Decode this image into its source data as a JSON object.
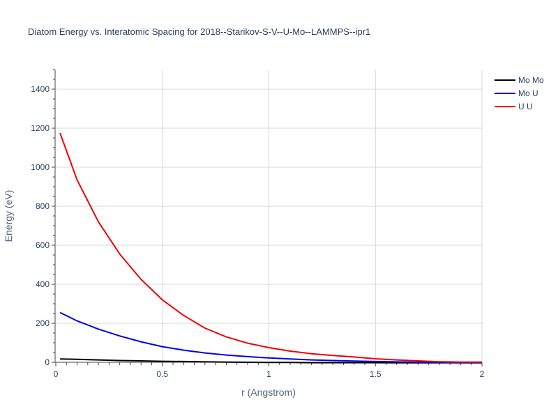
{
  "chart_data": {
    "type": "line",
    "title": "Diatom Energy vs. Interatomic Spacing for 2018--Starikov-S-V--U-Mo--LAMMPS--ipr1",
    "xlabel": "r (Angstrom)",
    "ylabel": "Energy (eV)",
    "xlim": [
      0,
      2
    ],
    "ylim": [
      0,
      1500
    ],
    "xticks": [
      0,
      0.5,
      1,
      1.5,
      2
    ],
    "xtick_labels": [
      "0",
      "0.5",
      "1",
      "1.5",
      "2"
    ],
    "yticks": [
      0,
      200,
      400,
      600,
      800,
      1000,
      1200,
      1400
    ],
    "ytick_labels": [
      "0",
      "200",
      "400",
      "600",
      "800",
      "1000",
      "1200",
      "1400"
    ],
    "grid": true,
    "legend_position": "top-right",
    "x": [
      0.02,
      0.1,
      0.2,
      0.3,
      0.4,
      0.5,
      0.6,
      0.7,
      0.8,
      0.9,
      1.0,
      1.1,
      1.2,
      1.3,
      1.4,
      1.5,
      1.6,
      1.7,
      1.8,
      1.9,
      2.0
    ],
    "series": [
      {
        "name": "Mo Mo",
        "color": "#000000",
        "values": [
          17,
          15,
          12,
          9,
          7,
          5,
          4,
          2,
          1,
          0,
          -1,
          -1,
          -2,
          -2,
          -2,
          -2,
          -3,
          -3,
          -3,
          -3,
          -3
        ]
      },
      {
        "name": "Mo U",
        "color": "#0000ee",
        "values": [
          255,
          212,
          170,
          135,
          105,
          80,
          62,
          48,
          37,
          29,
          22,
          17,
          12,
          9,
          6,
          4,
          2,
          0,
          -1,
          -2,
          -2
        ]
      },
      {
        "name": "U U",
        "color": "#ee0000",
        "values": [
          1175,
          935,
          720,
          555,
          425,
          320,
          240,
          175,
          130,
          98,
          75,
          57,
          44,
          35,
          27,
          18,
          12,
          7,
          3,
          1,
          1
        ]
      }
    ]
  }
}
